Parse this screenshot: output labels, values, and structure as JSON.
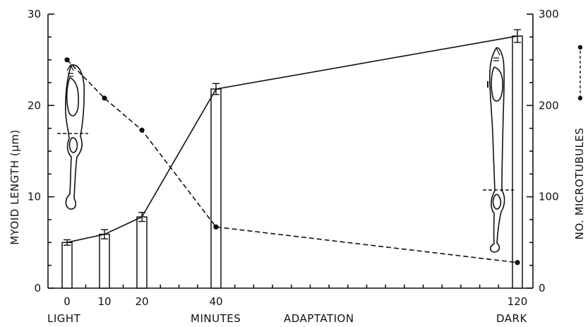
{
  "chart_data": {
    "type": "bar",
    "xlabel_left": "LIGHT",
    "xlabel_center": "MINUTES",
    "xlabel_center2": "ADAPTATION",
    "xlabel_right": "DARK",
    "ylabel_left": "MYOID LENGTH (μm)",
    "ylabel_right": "NO. MICROTUBULES",
    "x_ticks": [
      "0",
      "10",
      "20",
      "40",
      "120"
    ],
    "ylim_left": [
      0,
      30
    ],
    "ylim_right": [
      0,
      300
    ],
    "y_ticks_left": [
      "0",
      "10",
      "20",
      "30"
    ],
    "y_ticks_right": [
      "0",
      "100",
      "200",
      "300"
    ],
    "grid": false,
    "series": [
      {
        "kind": "bar-with-solid-line",
        "axis": "left",
        "x": [
          0,
          10,
          20,
          40,
          120
        ],
        "values": [
          5.0,
          5.9,
          7.8,
          21.8,
          27.6
        ],
        "errors": [
          0.3,
          0.5,
          0.5,
          0.6,
          0.7
        ]
      },
      {
        "kind": "dashed-line-with-dots",
        "axis": "right",
        "x": [
          0,
          10,
          20,
          40,
          120
        ],
        "values": [
          250,
          208,
          173,
          67,
          28
        ]
      }
    ],
    "icons": [
      "cone-cell-light-icon",
      "cone-cell-dark-icon"
    ]
  }
}
